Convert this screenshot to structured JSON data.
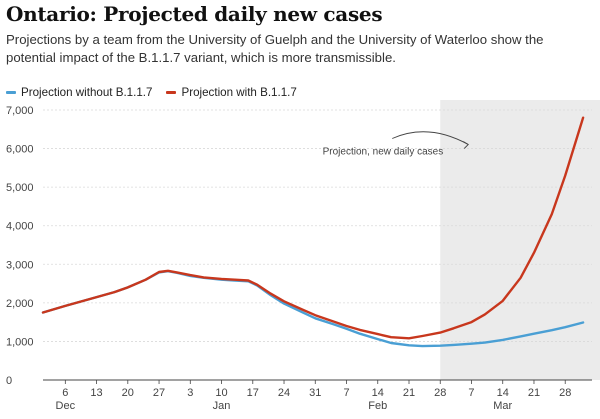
{
  "title": "Ontario: Projected daily new cases",
  "subtitle": "Projections by a team from the University of Guelph and the University of Waterloo show the potential impact of the B.1.1.7 variant, which is more transmissible.",
  "colors": {
    "without": "#4a9fd4",
    "with": "#c8371d",
    "projection_band": "#ebebeb"
  },
  "chart_data": {
    "type": "line",
    "title": "Ontario: Projected daily new cases",
    "xlabel": "",
    "ylabel": "",
    "x_start_date": "2020-12-01",
    "x_end_date": "2021-04-03",
    "ylim": [
      0,
      7000
    ],
    "y_ticks": [
      0,
      1000,
      2000,
      3000,
      4000,
      5000,
      6000,
      7000
    ],
    "y_tick_labels": [
      "0",
      "1,000",
      "2,000",
      "3,000",
      "4,000",
      "5,000",
      "6,000",
      "7,000"
    ],
    "x_ticks": [
      {
        "date": "2020-12-06",
        "label": "6"
      },
      {
        "date": "2020-12-13",
        "label": "13"
      },
      {
        "date": "2020-12-20",
        "label": "20"
      },
      {
        "date": "2020-12-27",
        "label": "27"
      },
      {
        "date": "2021-01-03",
        "label": "3"
      },
      {
        "date": "2021-01-10",
        "label": "10"
      },
      {
        "date": "2021-01-17",
        "label": "17"
      },
      {
        "date": "2021-01-24",
        "label": "24"
      },
      {
        "date": "2021-01-31",
        "label": "31"
      },
      {
        "date": "2021-02-07",
        "label": "7"
      },
      {
        "date": "2021-02-14",
        "label": "14"
      },
      {
        "date": "2021-02-21",
        "label": "21"
      },
      {
        "date": "2021-02-28",
        "label": "28"
      },
      {
        "date": "2021-03-07",
        "label": "7"
      },
      {
        "date": "2021-03-14",
        "label": "14"
      },
      {
        "date": "2021-03-21",
        "label": "21"
      },
      {
        "date": "2021-03-28",
        "label": "28"
      }
    ],
    "month_labels": [
      {
        "date": "2020-12-06",
        "label": "Dec"
      },
      {
        "date": "2021-01-10",
        "label": "Jan"
      },
      {
        "date": "2021-02-14",
        "label": "Feb"
      },
      {
        "date": "2021-03-14",
        "label": "Mar"
      }
    ],
    "projection_start": "2021-02-28",
    "annotation": {
      "text": "Projection, new daily cases",
      "date": "2021-02-28",
      "value": 5950
    },
    "series": [
      {
        "name": "Projection without B.1.1.7",
        "color": "#4a9fd4",
        "points": [
          [
            "2020-12-01",
            1750
          ],
          [
            "2020-12-06",
            1920
          ],
          [
            "2020-12-10",
            2050
          ],
          [
            "2020-12-13",
            2150
          ],
          [
            "2020-12-17",
            2280
          ],
          [
            "2020-12-20",
            2400
          ],
          [
            "2020-12-24",
            2600
          ],
          [
            "2020-12-27",
            2790
          ],
          [
            "2020-12-29",
            2820
          ],
          [
            "2020-12-31",
            2780
          ],
          [
            "2021-01-03",
            2700
          ],
          [
            "2021-01-06",
            2650
          ],
          [
            "2021-01-10",
            2600
          ],
          [
            "2021-01-13",
            2580
          ],
          [
            "2021-01-16",
            2560
          ],
          [
            "2021-01-18",
            2450
          ],
          [
            "2021-01-21",
            2200
          ],
          [
            "2021-01-24",
            1980
          ],
          [
            "2021-01-28",
            1760
          ],
          [
            "2021-01-31",
            1600
          ],
          [
            "2021-02-04",
            1450
          ],
          [
            "2021-02-07",
            1330
          ],
          [
            "2021-02-10",
            1200
          ],
          [
            "2021-02-14",
            1060
          ],
          [
            "2021-02-17",
            960
          ],
          [
            "2021-02-21",
            900
          ],
          [
            "2021-02-24",
            880
          ],
          [
            "2021-02-28",
            890
          ],
          [
            "2021-03-03",
            910
          ],
          [
            "2021-03-07",
            940
          ],
          [
            "2021-03-10",
            970
          ],
          [
            "2021-03-14",
            1040
          ],
          [
            "2021-03-18",
            1130
          ],
          [
            "2021-03-21",
            1200
          ],
          [
            "2021-03-25",
            1290
          ],
          [
            "2021-03-28",
            1370
          ],
          [
            "2021-04-01",
            1490
          ]
        ]
      },
      {
        "name": "Projection with B.1.1.7",
        "color": "#c8371d",
        "points": [
          [
            "2020-12-01",
            1750
          ],
          [
            "2020-12-06",
            1920
          ],
          [
            "2020-12-10",
            2050
          ],
          [
            "2020-12-13",
            2150
          ],
          [
            "2020-12-17",
            2280
          ],
          [
            "2020-12-20",
            2400
          ],
          [
            "2020-12-24",
            2600
          ],
          [
            "2020-12-27",
            2800
          ],
          [
            "2020-12-29",
            2830
          ],
          [
            "2020-12-31",
            2790
          ],
          [
            "2021-01-03",
            2720
          ],
          [
            "2021-01-06",
            2660
          ],
          [
            "2021-01-10",
            2620
          ],
          [
            "2021-01-13",
            2600
          ],
          [
            "2021-01-16",
            2580
          ],
          [
            "2021-01-18",
            2470
          ],
          [
            "2021-01-21",
            2240
          ],
          [
            "2021-01-24",
            2040
          ],
          [
            "2021-01-28",
            1830
          ],
          [
            "2021-01-31",
            1680
          ],
          [
            "2021-02-04",
            1520
          ],
          [
            "2021-02-07",
            1400
          ],
          [
            "2021-02-10",
            1300
          ],
          [
            "2021-02-14",
            1190
          ],
          [
            "2021-02-17",
            1110
          ],
          [
            "2021-02-21",
            1080
          ],
          [
            "2021-02-24",
            1140
          ],
          [
            "2021-02-28",
            1230
          ],
          [
            "2021-03-03",
            1340
          ],
          [
            "2021-03-07",
            1500
          ],
          [
            "2021-03-10",
            1700
          ],
          [
            "2021-03-14",
            2050
          ],
          [
            "2021-03-18",
            2650
          ],
          [
            "2021-03-21",
            3300
          ],
          [
            "2021-03-25",
            4300
          ],
          [
            "2021-03-28",
            5300
          ],
          [
            "2021-04-01",
            6800
          ]
        ]
      }
    ]
  }
}
